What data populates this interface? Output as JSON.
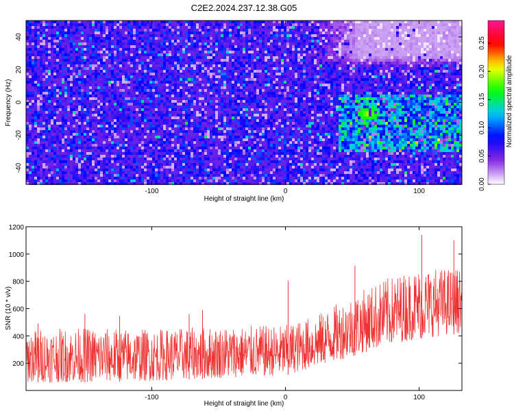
{
  "title": "C2E2.2024.237.12.38.G05",
  "chart_data": [
    {
      "type": "heatmap",
      "xlabel": "Height of straight line (km)",
      "ylabel": "Frequency (Hz)",
      "xlim": [
        -194,
        132
      ],
      "ylim": [
        -50,
        50
      ],
      "xticks": [
        -100,
        0,
        100
      ],
      "xtick_labels": [
        "-100",
        "0",
        "100"
      ],
      "yticks": [
        -40,
        -20,
        0,
        20,
        40
      ],
      "ytick_labels": [
        "-40",
        "-20",
        "0",
        "20",
        "40"
      ],
      "colorbar": {
        "label": "Normalized spectral amplitude",
        "range": [
          0,
          0.29
        ],
        "ticks": [
          0,
          0.05,
          0.1,
          0.15,
          0.2,
          0.25
        ],
        "tick_labels": [
          "0.00",
          "0.05",
          "0.10",
          "0.15",
          "0.20",
          "0.25"
        ],
        "colors": [
          "#ffffff",
          "#8a2be2",
          "#0000ff",
          "#00c8ff",
          "#00ff00",
          "#ffff00",
          "#ff0000",
          "#ff1493"
        ]
      },
      "features": [
        {
          "description": "faint low-amplitude region",
          "x_range": [
            15,
            130
          ],
          "y_range": [
            20,
            50
          ],
          "level": 0.01
        },
        {
          "description": "enhanced amplitude band",
          "x_range": [
            40,
            130
          ],
          "y_range": [
            -30,
            5
          ],
          "level": 0.1
        },
        {
          "description": "peak amplitude",
          "x": 62,
          "y": -7,
          "level": 0.2
        }
      ]
    },
    {
      "type": "line",
      "xlabel": "Height of straight line (km)",
      "ylabel": "SNR (10 * v/v)",
      "xlim": [
        -194,
        132
      ],
      "ylim": [
        0,
        1200
      ],
      "xticks": [
        -100,
        0,
        100
      ],
      "xtick_labels": [
        "-100",
        "0",
        "100"
      ],
      "yticks": [
        200,
        400,
        600,
        800,
        1000,
        1200
      ],
      "ytick_labels": [
        "200",
        "400",
        "600",
        "800",
        "1000",
        "1200"
      ],
      "color": "#ee3333",
      "envelope": {
        "x": [
          -194,
          -150,
          -100,
          -50,
          0,
          25,
          50,
          75,
          100,
          132
        ],
        "lower": [
          60,
          60,
          70,
          90,
          110,
          180,
          250,
          330,
          380,
          420
        ],
        "upper": [
          450,
          460,
          450,
          470,
          480,
          560,
          700,
          820,
          900,
          900
        ]
      },
      "spikes": [
        {
          "x": -185,
          "y": 490
        },
        {
          "x": -150,
          "y": 560
        },
        {
          "x": -124,
          "y": 545
        },
        {
          "x": -62,
          "y": 590
        },
        {
          "x": -72,
          "y": 560
        },
        {
          "x": 2,
          "y": 805
        },
        {
          "x": 52,
          "y": 915
        },
        {
          "x": 102,
          "y": 1140
        },
        {
          "x": 126,
          "y": 1100
        }
      ]
    }
  ]
}
